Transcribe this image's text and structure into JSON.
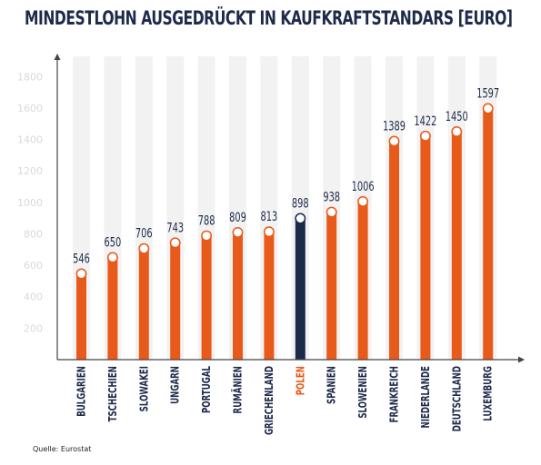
{
  "title": "MINDESTLOHN AUSGEDRÜCKT IN KAUFKRAFTSTANDARS [EURO]",
  "source": "Quelle: Eurostat",
  "colors": {
    "bar": "#e85a1a",
    "highlight": "#1b2a4a",
    "band": "#f2f2f2",
    "title": "#1e2a4a"
  },
  "chart_data": {
    "type": "bar",
    "title": "MINDESTLOHN AUSGEDRÜCKT IN KAUFKRAFTSTANDARS [EURO]",
    "xlabel": "",
    "ylabel": "",
    "ylim": [
      0,
      1900
    ],
    "yticks": [
      200,
      400,
      600,
      800,
      1000,
      1200,
      1400,
      1600,
      1800
    ],
    "grid": false,
    "highlight": "POLEN",
    "categories": [
      "BULGARIEN",
      "TSCHECHIEN",
      "SLOWAKEI",
      "UNGARN",
      "PORTUGAL",
      "RUMÄNIEN",
      "GRIECHENLAND",
      "POLEN",
      "SPANIEN",
      "SLOWENIEN",
      "FRANKREICH",
      "NIEDERLANDE",
      "DEUTSCHLAND",
      "LUXEMBURG"
    ],
    "values": [
      546,
      650,
      706,
      743,
      788,
      809,
      813,
      898,
      938,
      1006,
      1389,
      1422,
      1450,
      1597
    ]
  }
}
